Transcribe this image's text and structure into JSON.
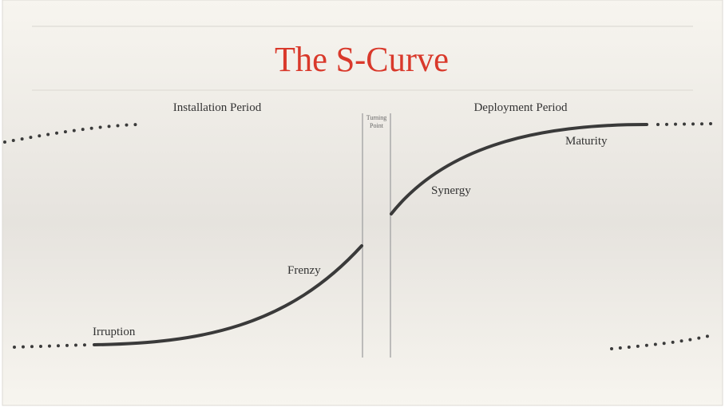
{
  "title": "The S-Curve",
  "periods": {
    "installation": "Installation Period",
    "deployment": "Deployment Period"
  },
  "turning_point": {
    "line1": "Turning",
    "line2": "Point"
  },
  "phases": {
    "irruption": "Irruption",
    "frenzy": "Frenzy",
    "synergy": "Synergy",
    "maturity": "Maturity"
  },
  "colors": {
    "title": "#d9392b",
    "curve": "#3a3a3a",
    "background": "#f7f5ef"
  }
}
